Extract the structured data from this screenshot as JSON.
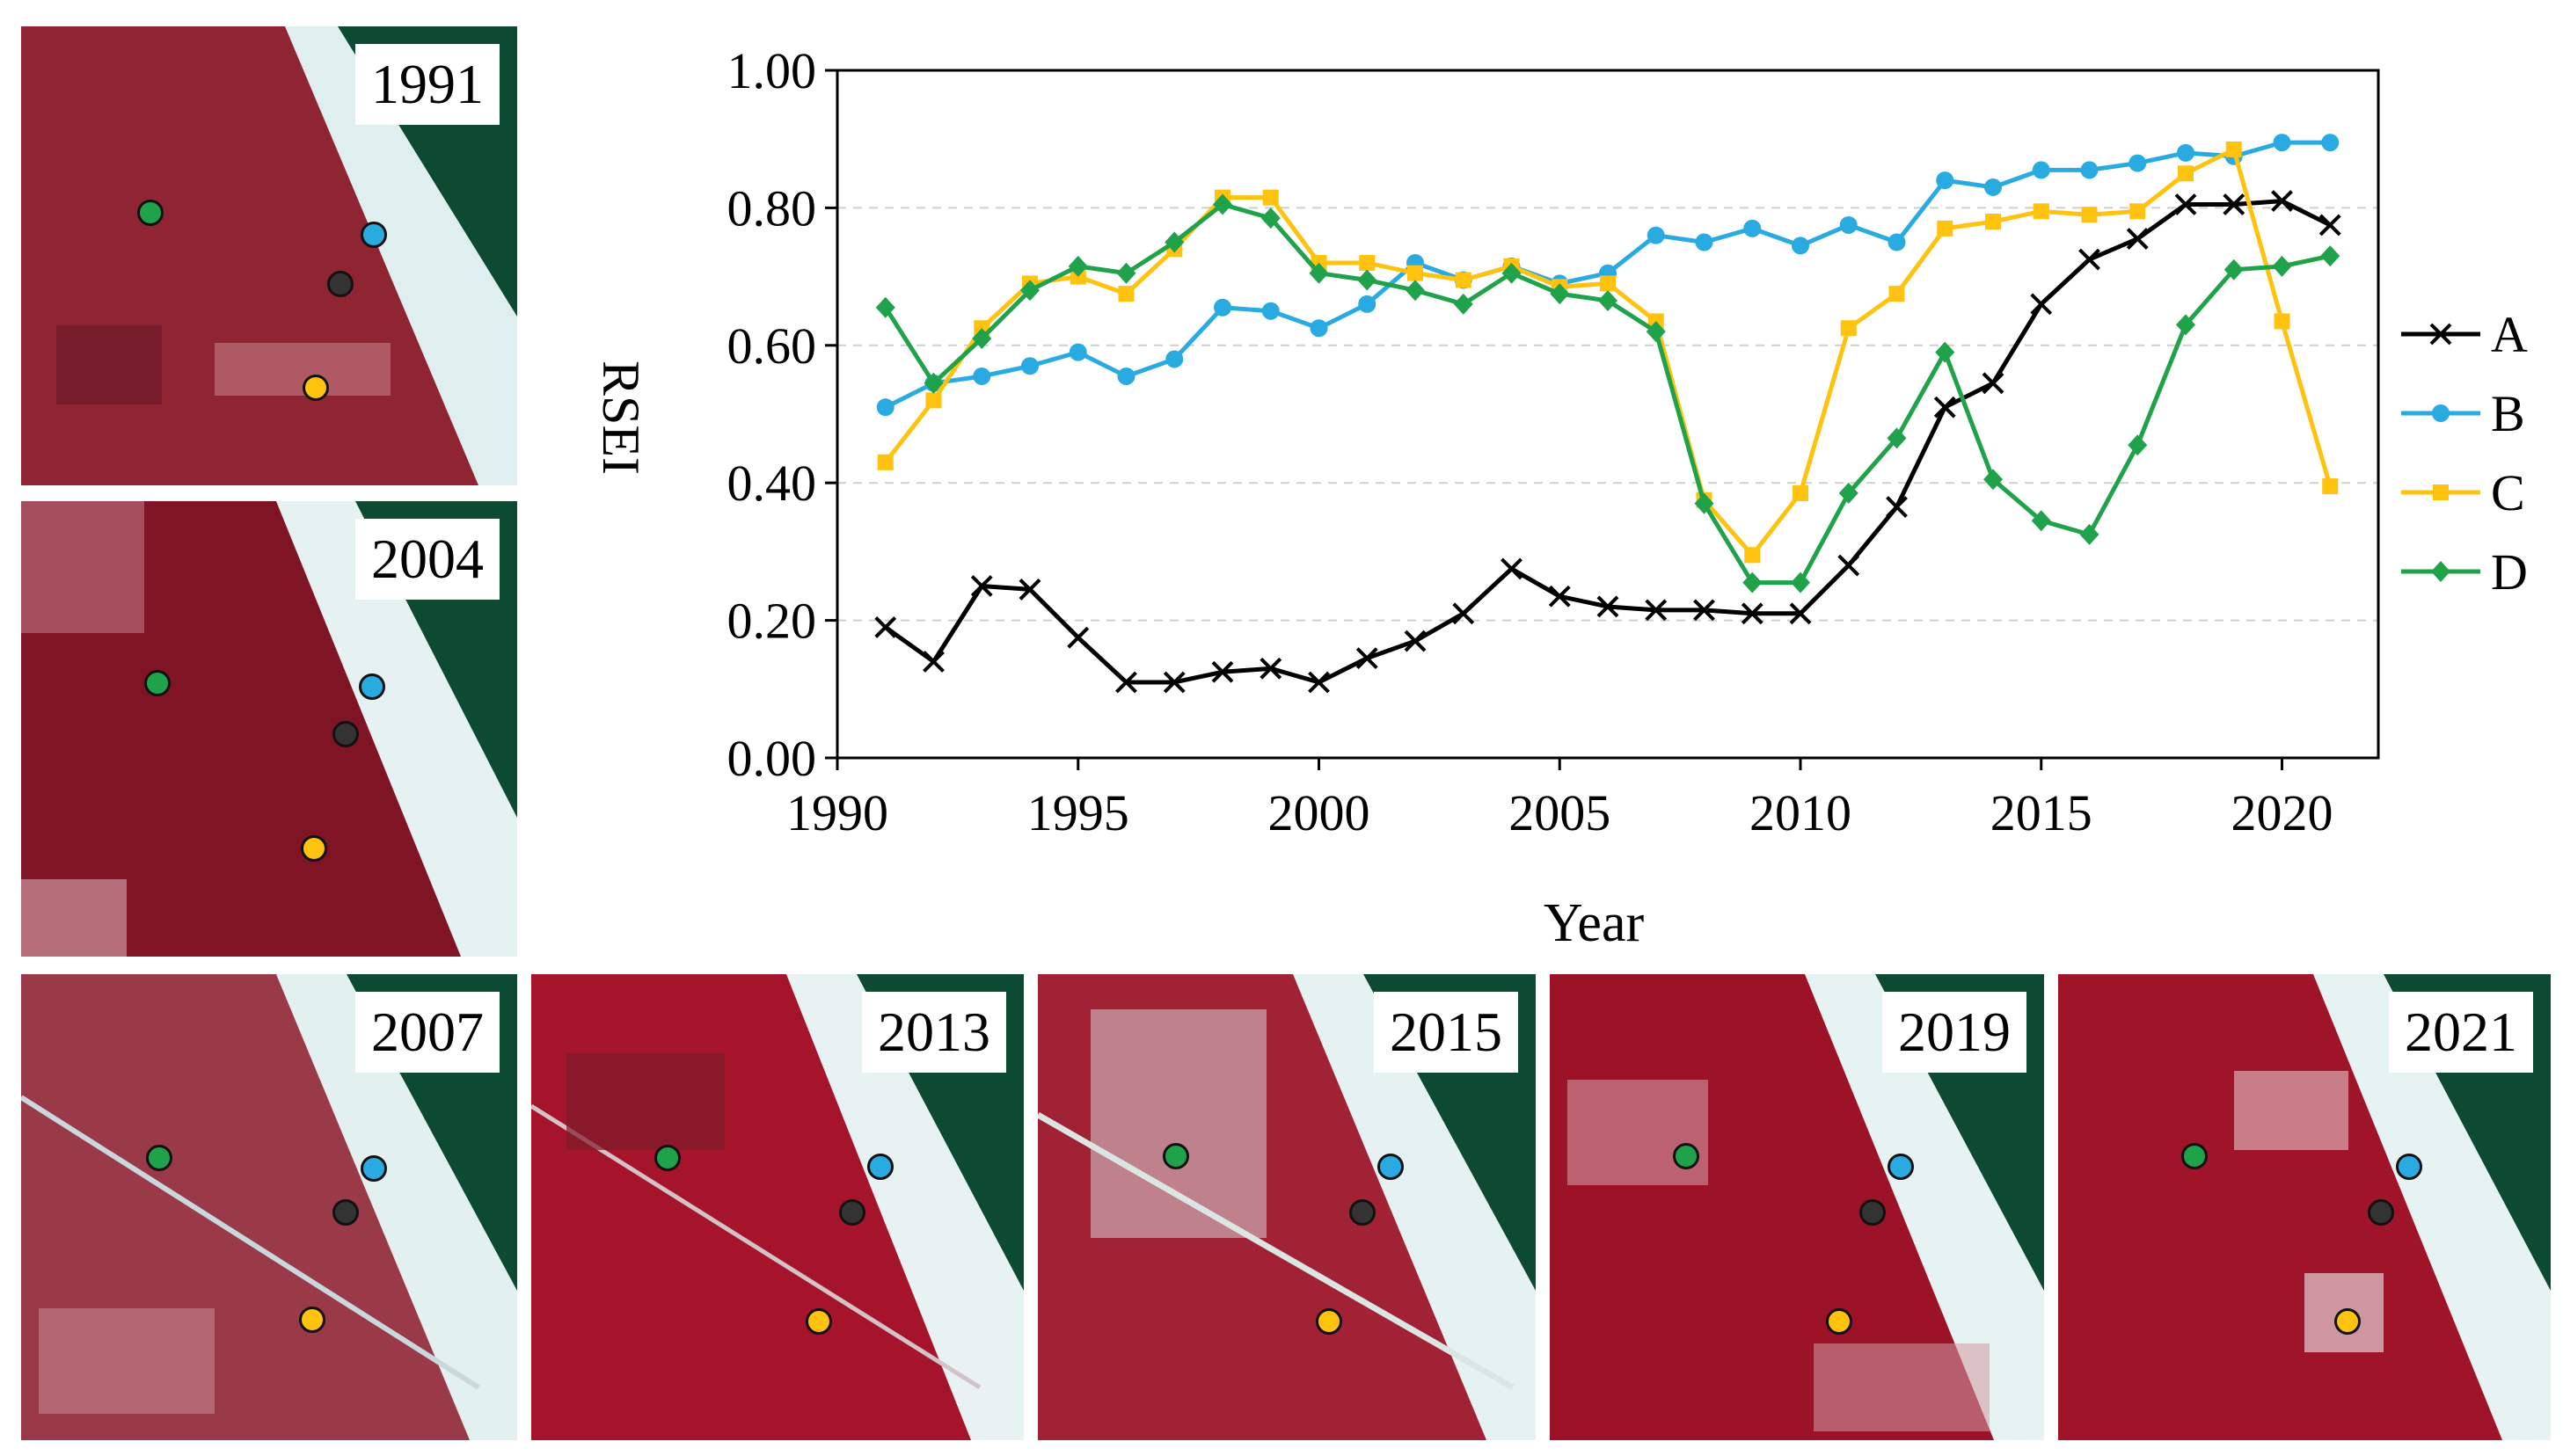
{
  "colors": {
    "A": "#000000",
    "B": "#29abe2",
    "C": "#ffc20e",
    "D": "#1fa24a"
  },
  "images": [
    {
      "year": "1991"
    },
    {
      "year": "2004"
    },
    {
      "year": "2007"
    },
    {
      "year": "2013"
    },
    {
      "year": "2015"
    },
    {
      "year": "2019"
    },
    {
      "year": "2021"
    }
  ],
  "chart_data": {
    "type": "line",
    "ylabel": "RSEI",
    "xlabel": "Year",
    "xlim": [
      1990,
      2022
    ],
    "ylim": [
      0,
      1
    ],
    "xticks": [
      "1990",
      "1995",
      "2000",
      "2005",
      "2010",
      "2015",
      "2020"
    ],
    "yticks": [
      "0.00",
      "0.20",
      "0.40",
      "0.60",
      "0.80",
      "1.00"
    ],
    "grid": "horizontal dashed",
    "legend_position": "right",
    "x": [
      1991,
      1992,
      1993,
      1994,
      1995,
      1996,
      1997,
      1998,
      1999,
      2000,
      2001,
      2002,
      2003,
      2004,
      2005,
      2006,
      2007,
      2008,
      2009,
      2010,
      2011,
      2012,
      2013,
      2014,
      2015,
      2016,
      2017,
      2018,
      2019,
      2020,
      2021
    ],
    "series": [
      {
        "name": "A",
        "marker": "x",
        "values": [
          0.19,
          0.14,
          0.25,
          0.245,
          0.175,
          0.11,
          0.11,
          0.125,
          0.13,
          0.11,
          0.145,
          0.17,
          0.21,
          0.275,
          0.235,
          0.22,
          0.215,
          0.215,
          0.21,
          0.21,
          0.28,
          0.365,
          0.51,
          0.545,
          0.66,
          0.725,
          0.755,
          0.805,
          0.805,
          0.81,
          0.775
        ]
      },
      {
        "name": "B",
        "marker": "circle",
        "values": [
          0.51,
          0.545,
          0.555,
          0.57,
          0.59,
          0.555,
          0.58,
          0.655,
          0.65,
          0.625,
          0.66,
          0.72,
          0.695,
          0.715,
          0.69,
          0.705,
          0.76,
          0.75,
          0.77,
          0.745,
          0.775,
          0.75,
          0.84,
          0.83,
          0.855,
          0.855,
          0.865,
          0.88,
          0.875,
          0.895,
          0.895
        ]
      },
      {
        "name": "C",
        "marker": "square",
        "values": [
          0.43,
          0.52,
          0.625,
          0.69,
          0.7,
          0.675,
          0.74,
          0.815,
          0.815,
          0.72,
          0.72,
          0.705,
          0.695,
          0.715,
          0.685,
          0.69,
          0.635,
          0.375,
          0.295,
          0.385,
          0.625,
          0.675,
          0.77,
          0.78,
          0.795,
          0.79,
          0.795,
          0.85,
          0.885,
          0.635,
          0.395
        ]
      },
      {
        "name": "D",
        "marker": "diamond",
        "values": [
          0.655,
          0.545,
          0.61,
          0.68,
          0.715,
          0.705,
          0.75,
          0.805,
          0.785,
          0.705,
          0.695,
          0.68,
          0.66,
          0.705,
          0.675,
          0.665,
          0.62,
          0.37,
          0.255,
          0.255,
          0.385,
          0.465,
          0.59,
          0.405,
          0.345,
          0.325,
          0.455,
          0.63,
          0.71,
          0.715,
          0.73
        ]
      }
    ]
  }
}
